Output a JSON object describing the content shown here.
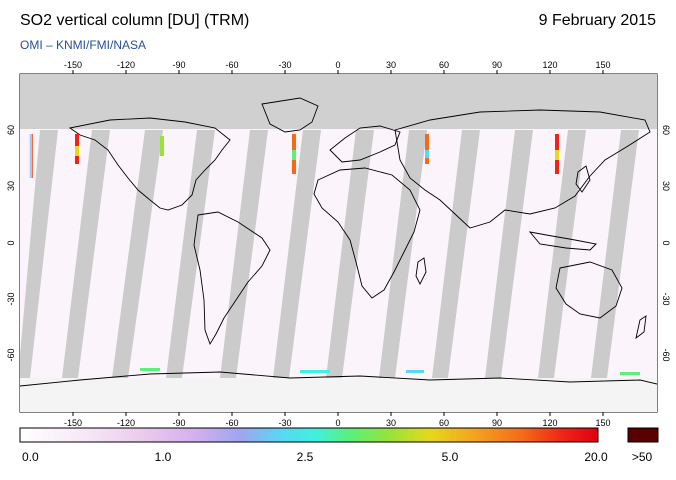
{
  "header": {
    "title": "SO2 vertical column [DU] (TRM)",
    "date": "9 February 2015",
    "subtitle": "OMI  –  KNMI/FMI/NASA"
  },
  "map": {
    "lon_ticks": [
      "-150",
      "-120",
      "-90",
      "-60",
      "-30",
      "0",
      "30",
      "60",
      "90",
      "120",
      "150"
    ],
    "lat_ticks": [
      "60",
      "30",
      "0",
      "-30",
      "-60"
    ]
  },
  "colorbar": {
    "labels": [
      "0.0",
      "1.0",
      "2.5",
      "5.0",
      "20.0"
    ],
    "overflow_label": ">50",
    "overflow_color": "#5a0000"
  }
}
